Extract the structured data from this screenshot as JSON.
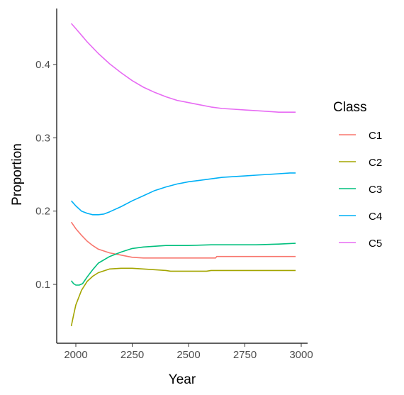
{
  "chart_data": {
    "type": "line",
    "title": "",
    "xlabel": "Year",
    "ylabel": "Proportion",
    "xlim": [
      1970,
      3000
    ],
    "ylim": [
      0.03,
      0.47
    ],
    "x_ticks": [
      2000,
      2250,
      2500,
      2750,
      3000
    ],
    "x_tick_labels": [
      "2000",
      "2250",
      "2500",
      "2750",
      "3000"
    ],
    "y_ticks": [
      0.1,
      0.2,
      0.3,
      0.4
    ],
    "y_tick_labels": [
      "0.1",
      "0.2",
      "0.3",
      "0.4"
    ],
    "grid": false,
    "legend": {
      "title": "Class",
      "position": "right"
    },
    "series": [
      {
        "name": "C1",
        "color": "#F8766D",
        "points": [
          [
            1980,
            0.185
          ],
          [
            2000,
            0.176
          ],
          [
            2025,
            0.167
          ],
          [
            2050,
            0.159
          ],
          [
            2075,
            0.153
          ],
          [
            2100,
            0.148
          ],
          [
            2150,
            0.143
          ],
          [
            2200,
            0.14
          ],
          [
            2250,
            0.137
          ],
          [
            2300,
            0.136
          ],
          [
            2620,
            0.136
          ],
          [
            2625,
            0.138
          ],
          [
            2975,
            0.138
          ]
        ]
      },
      {
        "name": "C2",
        "color": "#A3A500",
        "points": [
          [
            1980,
            0.043
          ],
          [
            1990,
            0.058
          ],
          [
            2000,
            0.072
          ],
          [
            2025,
            0.092
          ],
          [
            2050,
            0.104
          ],
          [
            2075,
            0.111
          ],
          [
            2100,
            0.116
          ],
          [
            2150,
            0.121
          ],
          [
            2200,
            0.122
          ],
          [
            2250,
            0.122
          ],
          [
            2300,
            0.121
          ],
          [
            2400,
            0.119
          ],
          [
            2420,
            0.118
          ],
          [
            2580,
            0.118
          ],
          [
            2600,
            0.119
          ],
          [
            2975,
            0.119
          ]
        ]
      },
      {
        "name": "C3",
        "color": "#00BF7D",
        "points": [
          [
            1980,
            0.105
          ],
          [
            1990,
            0.101
          ],
          [
            2000,
            0.099
          ],
          [
            2015,
            0.099
          ],
          [
            2030,
            0.101
          ],
          [
            2050,
            0.11
          ],
          [
            2075,
            0.12
          ],
          [
            2100,
            0.129
          ],
          [
            2150,
            0.138
          ],
          [
            2200,
            0.144
          ],
          [
            2250,
            0.149
          ],
          [
            2300,
            0.151
          ],
          [
            2400,
            0.153
          ],
          [
            2500,
            0.153
          ],
          [
            2600,
            0.154
          ],
          [
            2700,
            0.154
          ],
          [
            2800,
            0.154
          ],
          [
            2900,
            0.155
          ],
          [
            2975,
            0.156
          ]
        ]
      },
      {
        "name": "C4",
        "color": "#00B0F6",
        "points": [
          [
            1980,
            0.214
          ],
          [
            2000,
            0.207
          ],
          [
            2025,
            0.2
          ],
          [
            2050,
            0.197
          ],
          [
            2075,
            0.195
          ],
          [
            2100,
            0.195
          ],
          [
            2125,
            0.196
          ],
          [
            2150,
            0.199
          ],
          [
            2200,
            0.206
          ],
          [
            2250,
            0.214
          ],
          [
            2300,
            0.221
          ],
          [
            2350,
            0.228
          ],
          [
            2400,
            0.233
          ],
          [
            2450,
            0.237
          ],
          [
            2500,
            0.24
          ],
          [
            2550,
            0.242
          ],
          [
            2600,
            0.244
          ],
          [
            2650,
            0.246
          ],
          [
            2700,
            0.247
          ],
          [
            2750,
            0.248
          ],
          [
            2800,
            0.249
          ],
          [
            2850,
            0.25
          ],
          [
            2900,
            0.251
          ],
          [
            2950,
            0.252
          ],
          [
            2975,
            0.252
          ]
        ]
      },
      {
        "name": "C5",
        "color": "#E76BF3",
        "points": [
          [
            1980,
            0.456
          ],
          [
            2000,
            0.449
          ],
          [
            2025,
            0.44
          ],
          [
            2050,
            0.431
          ],
          [
            2075,
            0.423
          ],
          [
            2100,
            0.415
          ],
          [
            2150,
            0.401
          ],
          [
            2200,
            0.389
          ],
          [
            2250,
            0.378
          ],
          [
            2300,
            0.369
          ],
          [
            2350,
            0.362
          ],
          [
            2400,
            0.356
          ],
          [
            2450,
            0.351
          ],
          [
            2500,
            0.348
          ],
          [
            2550,
            0.345
          ],
          [
            2600,
            0.342
          ],
          [
            2650,
            0.34
          ],
          [
            2700,
            0.339
          ],
          [
            2750,
            0.338
          ],
          [
            2800,
            0.337
          ],
          [
            2850,
            0.336
          ],
          [
            2900,
            0.335
          ],
          [
            2950,
            0.335
          ],
          [
            2975,
            0.335
          ]
        ]
      }
    ]
  }
}
